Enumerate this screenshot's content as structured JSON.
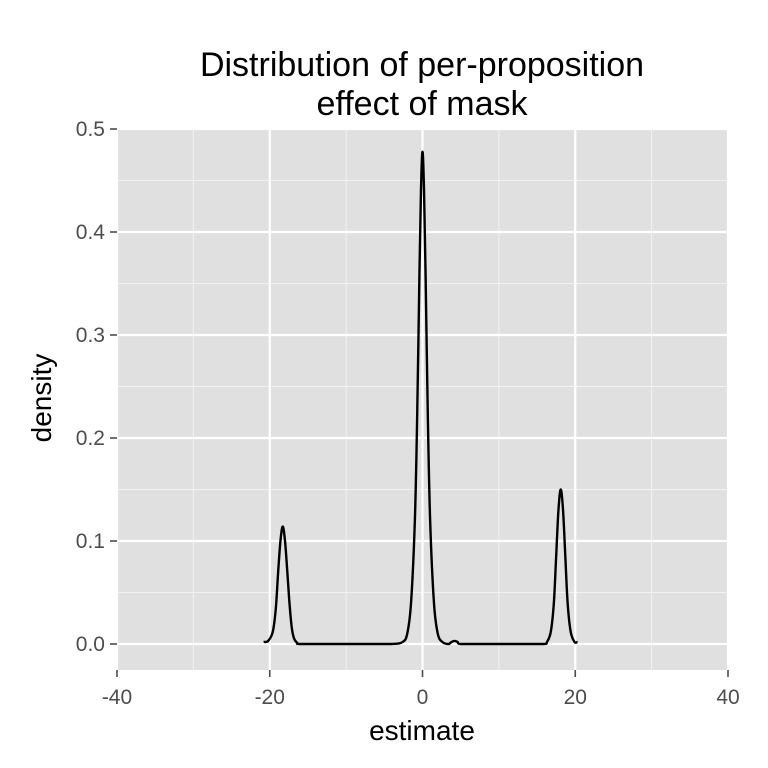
{
  "chart_data": {
    "type": "line",
    "title_lines": [
      "Distribution of per-proposition",
      "effect of mask"
    ],
    "xlabel": "estimate",
    "ylabel": "density",
    "xlim": [
      -40,
      40
    ],
    "ylim": [
      0,
      0.5
    ],
    "x_ticks": [
      -40,
      -20,
      0,
      20,
      40
    ],
    "x_tick_labels": [
      "-40",
      "-20",
      "0",
      "20",
      "40"
    ],
    "y_ticks": [
      0.0,
      0.1,
      0.2,
      0.3,
      0.4,
      0.5
    ],
    "y_tick_labels": [
      "0.0",
      "0.1",
      "0.2",
      "0.3",
      "0.4",
      "0.5"
    ],
    "grid": true,
    "panel_background": "#e0e0e0",
    "grid_color": "#ffffff",
    "line_color": "#000000",
    "series": [
      {
        "x": [
          -20.8,
          -20.2,
          -19.6,
          -19.2,
          -18.9,
          -18.6,
          -18.3,
          -18.0,
          -17.7,
          -17.4,
          -17.1,
          -16.8,
          -16.4,
          -16.0,
          -12.0,
          -8.0,
          -4.0,
          -2.6,
          -2.0,
          -1.5,
          -1.0,
          -0.7,
          -0.4,
          -0.2,
          0.0,
          0.2,
          0.4,
          0.7,
          1.0,
          1.5,
          2.0,
          2.6,
          3.4,
          3.8,
          4.2,
          4.6,
          5.0,
          8.0,
          12.0,
          15.8,
          16.3,
          16.8,
          17.2,
          17.5,
          17.8,
          18.1,
          18.4,
          18.7,
          19.0,
          19.4,
          19.9,
          20.3
        ],
        "y": [
          0.002,
          0.003,
          0.012,
          0.035,
          0.07,
          0.1,
          0.114,
          0.1,
          0.07,
          0.038,
          0.015,
          0.005,
          0.001,
          0.0,
          0.0,
          0.0,
          0.0,
          0.002,
          0.01,
          0.04,
          0.12,
          0.22,
          0.36,
          0.44,
          0.478,
          0.44,
          0.36,
          0.22,
          0.12,
          0.04,
          0.01,
          0.002,
          0.0,
          0.002,
          0.003,
          0.002,
          0.0,
          0.0,
          0.0,
          0.0,
          0.002,
          0.012,
          0.04,
          0.085,
          0.13,
          0.15,
          0.13,
          0.085,
          0.04,
          0.012,
          0.002,
          0.002
        ]
      }
    ]
  }
}
